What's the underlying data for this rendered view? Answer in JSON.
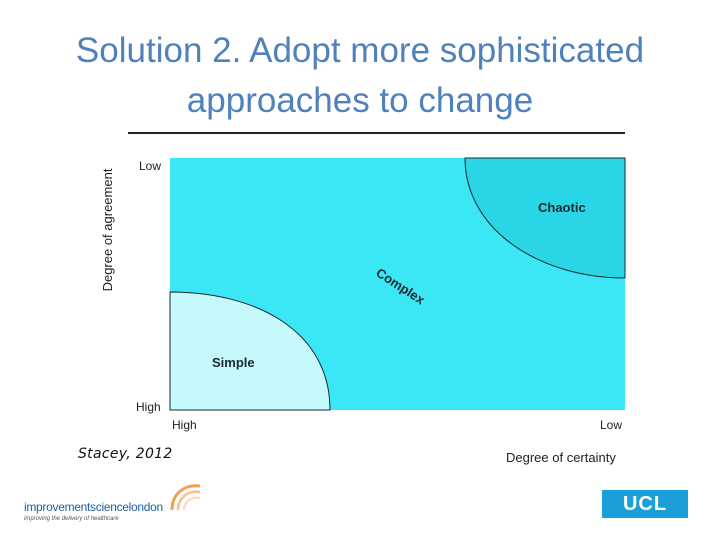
{
  "slide": {
    "title": "Solution 2. Adopt more sophisticated approaches to change",
    "citation": "Stacey, 2012"
  },
  "diagram": {
    "y_axis_label": "Degree of agreement",
    "x_axis_label": "Degree of certainty",
    "y_top_label": "Low",
    "y_bottom_label": "High",
    "x_left_label": "High",
    "x_right_label": "Low",
    "zones": {
      "simple": "Simple",
      "complex": "Complex",
      "chaotic": "Chaotic"
    },
    "colors": {
      "complex": "#3be6f5",
      "simple": "#c5f9fc",
      "chaotic": "#2ad6e6"
    }
  },
  "logos": {
    "isl_wordmark": "improvementsciencelondon",
    "isl_tagline": "improving the delivery of healthcare",
    "ucl": "UCL"
  }
}
